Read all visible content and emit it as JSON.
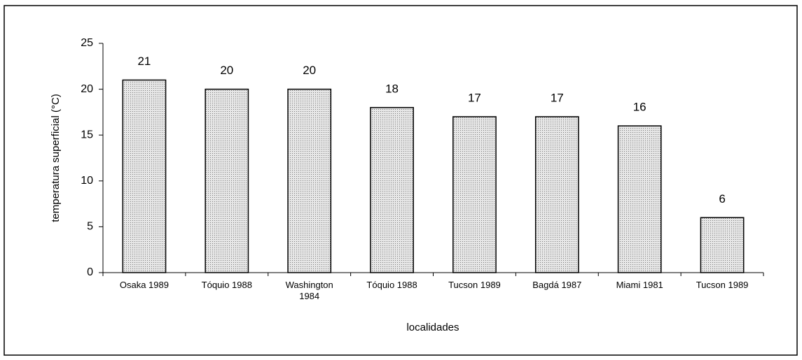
{
  "chart_data": {
    "type": "bar",
    "categories": [
      "Osaka 1989",
      "Tóquio 1988",
      "Washington 1984",
      "Tóquio 1988",
      "Tucson 1989",
      "Bagdá 1987",
      "Miami 1981",
      "Tucson 1989"
    ],
    "values": [
      21,
      20,
      20,
      18,
      17,
      17,
      16,
      6
    ],
    "color": "#e6e6e6",
    "x_label": "localidades",
    "y_label": "temperatura superficial (°C)",
    "ylim": [
      0,
      25
    ],
    "yticks": [
      0,
      5,
      10,
      15,
      20,
      25
    ],
    "grid": false
  }
}
